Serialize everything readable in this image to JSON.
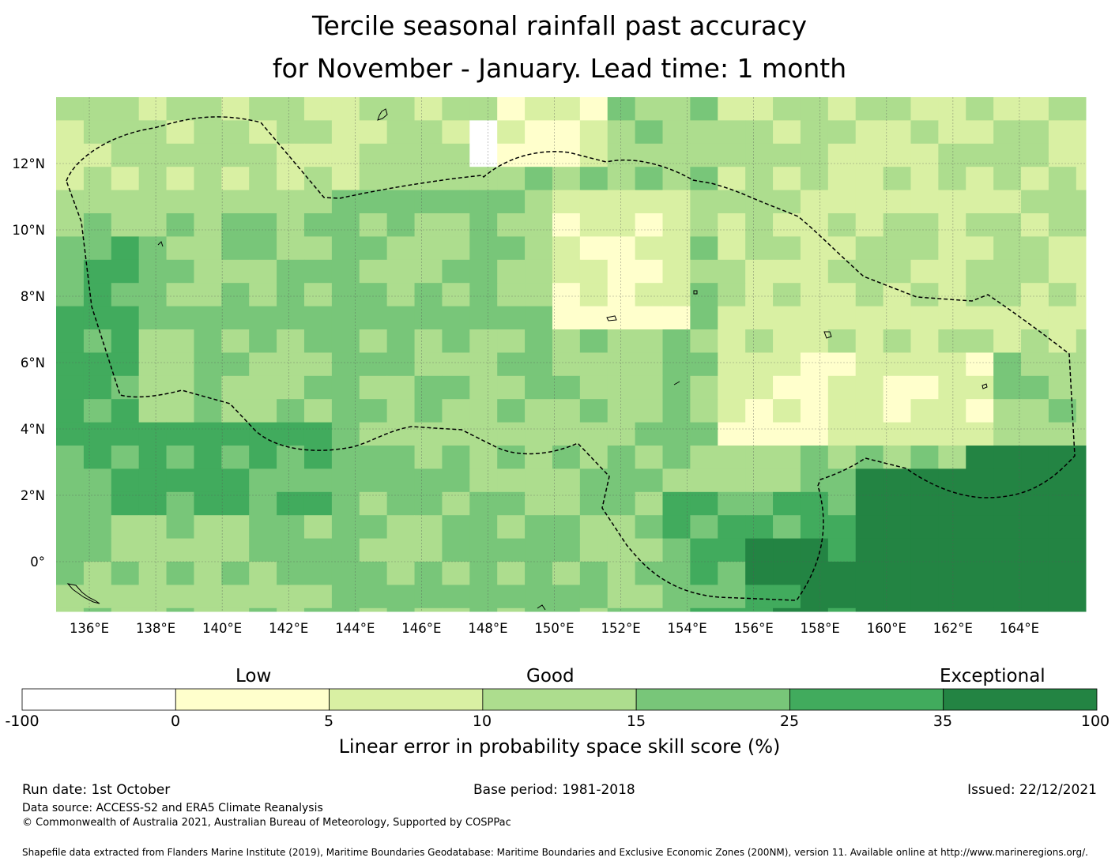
{
  "title_line1": "Tercile seasonal rainfall past accuracy",
  "title_line2": "for November - January. Lead time: 1 month",
  "map": {
    "lon_range": [
      135,
      166
    ],
    "lat_range": [
      -1.5,
      14
    ],
    "x_ticks": [
      "136°E",
      "138°E",
      "140°E",
      "142°E",
      "144°E",
      "146°E",
      "148°E",
      "150°E",
      "152°E",
      "154°E",
      "156°E",
      "158°E",
      "160°E",
      "162°E",
      "164°E"
    ],
    "y_ticks": [
      "12°N",
      "10°N",
      "8°N",
      "6°N",
      "4°N",
      "2°N",
      "0°"
    ],
    "gridlines": true,
    "boundary": "EEZ dashed outline"
  },
  "colorbar": {
    "categories": [
      "Low",
      "Good",
      "Exceptional"
    ],
    "ticks": [
      "-100",
      "0",
      "5",
      "10",
      "15",
      "25",
      "35",
      "100"
    ],
    "colors": [
      "#ffffff",
      "#ffffcc",
      "#d9f0a3",
      "#addd8e",
      "#78c679",
      "#41ab5d",
      "#238443"
    ],
    "label": "Linear error in probability space skill score (%)"
  },
  "footer": {
    "run_date": "Run date: 1st October",
    "base_period": "Base period: 1981-2018",
    "issued": "Issued: 22/12/2021",
    "data_source": "Data source: ACCESS-S2 and ERA5 Climate Reanalysis",
    "copyright": "© Commonwealth of Australia 2021, Australian Bureau of Meteorology, Supported by COSPPac",
    "shapefile": "Shapefile data extracted from Flanders Marine Institute (2019), Maritime Boundaries Geodatabase: Maritime Boundaries and Exclusive Economic Zones (200NM), version 11. Available online at http://www.marineregions.org/."
  }
}
